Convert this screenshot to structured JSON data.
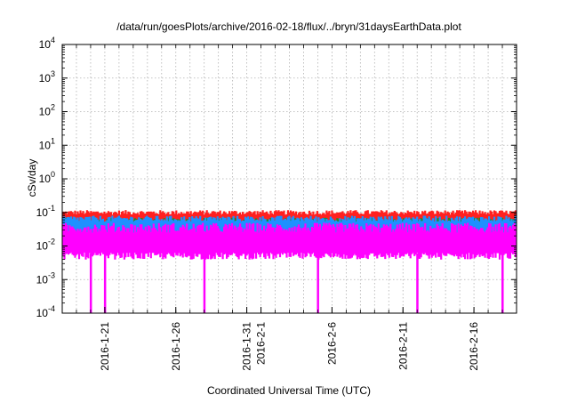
{
  "chart_data": {
    "type": "area",
    "title": "/data/run/goesPlots/archive/2016-02-18/flux/../bryn/31daysEarthData.plot",
    "xlabel": "Coordinated Universal Time (UTC)",
    "ylabel": "cSv/day",
    "y_scale": "log",
    "ylim": [
      0.0001,
      10000
    ],
    "xlim": [
      "2016-01-18",
      "2016-02-19"
    ],
    "grid": true,
    "y_ticks": [
      {
        "value": 0.0001,
        "base": "10",
        "exp": "-4"
      },
      {
        "value": 0.001,
        "base": "10",
        "exp": "-3"
      },
      {
        "value": 0.01,
        "base": "10",
        "exp": "-2"
      },
      {
        "value": 0.1,
        "base": "10",
        "exp": "-1"
      },
      {
        "value": 1,
        "base": "10",
        "exp": "0"
      },
      {
        "value": 10,
        "base": "10",
        "exp": "1"
      },
      {
        "value": 100,
        "base": "10",
        "exp": "2"
      },
      {
        "value": 1000,
        "base": "10",
        "exp": "3"
      },
      {
        "value": 10000,
        "base": "10",
        "exp": "4"
      }
    ],
    "x_tick_labels": [
      {
        "date": "2016-01-21",
        "label": "2016-1-21"
      },
      {
        "date": "2016-01-26",
        "label": "2016-1-26"
      },
      {
        "date": "2016-01-31",
        "label": "2016-1-31"
      },
      {
        "date": "2016-02-01",
        "label": "2016-2-1"
      },
      {
        "date": "2016-02-06",
        "label": "2016-2-6"
      },
      {
        "date": "2016-02-11",
        "label": "2016-2-11"
      },
      {
        "date": "2016-02-16",
        "label": "2016-2-16"
      }
    ],
    "series": [
      {
        "color": "#ff2020",
        "band": [
          0.04,
          0.1
        ]
      },
      {
        "color": "#228B22",
        "band": [
          0.025,
          0.06
        ]
      },
      {
        "color": "#1e90ff",
        "band": [
          0.02,
          0.065
        ]
      },
      {
        "color": "#ff00ff",
        "band": [
          0.005,
          0.035
        ]
      }
    ],
    "dropouts": [
      "2016-01-20",
      "2016-01-21",
      "2016-01-28",
      "2016-02-05",
      "2016-02-12",
      "2016-02-18"
    ]
  }
}
